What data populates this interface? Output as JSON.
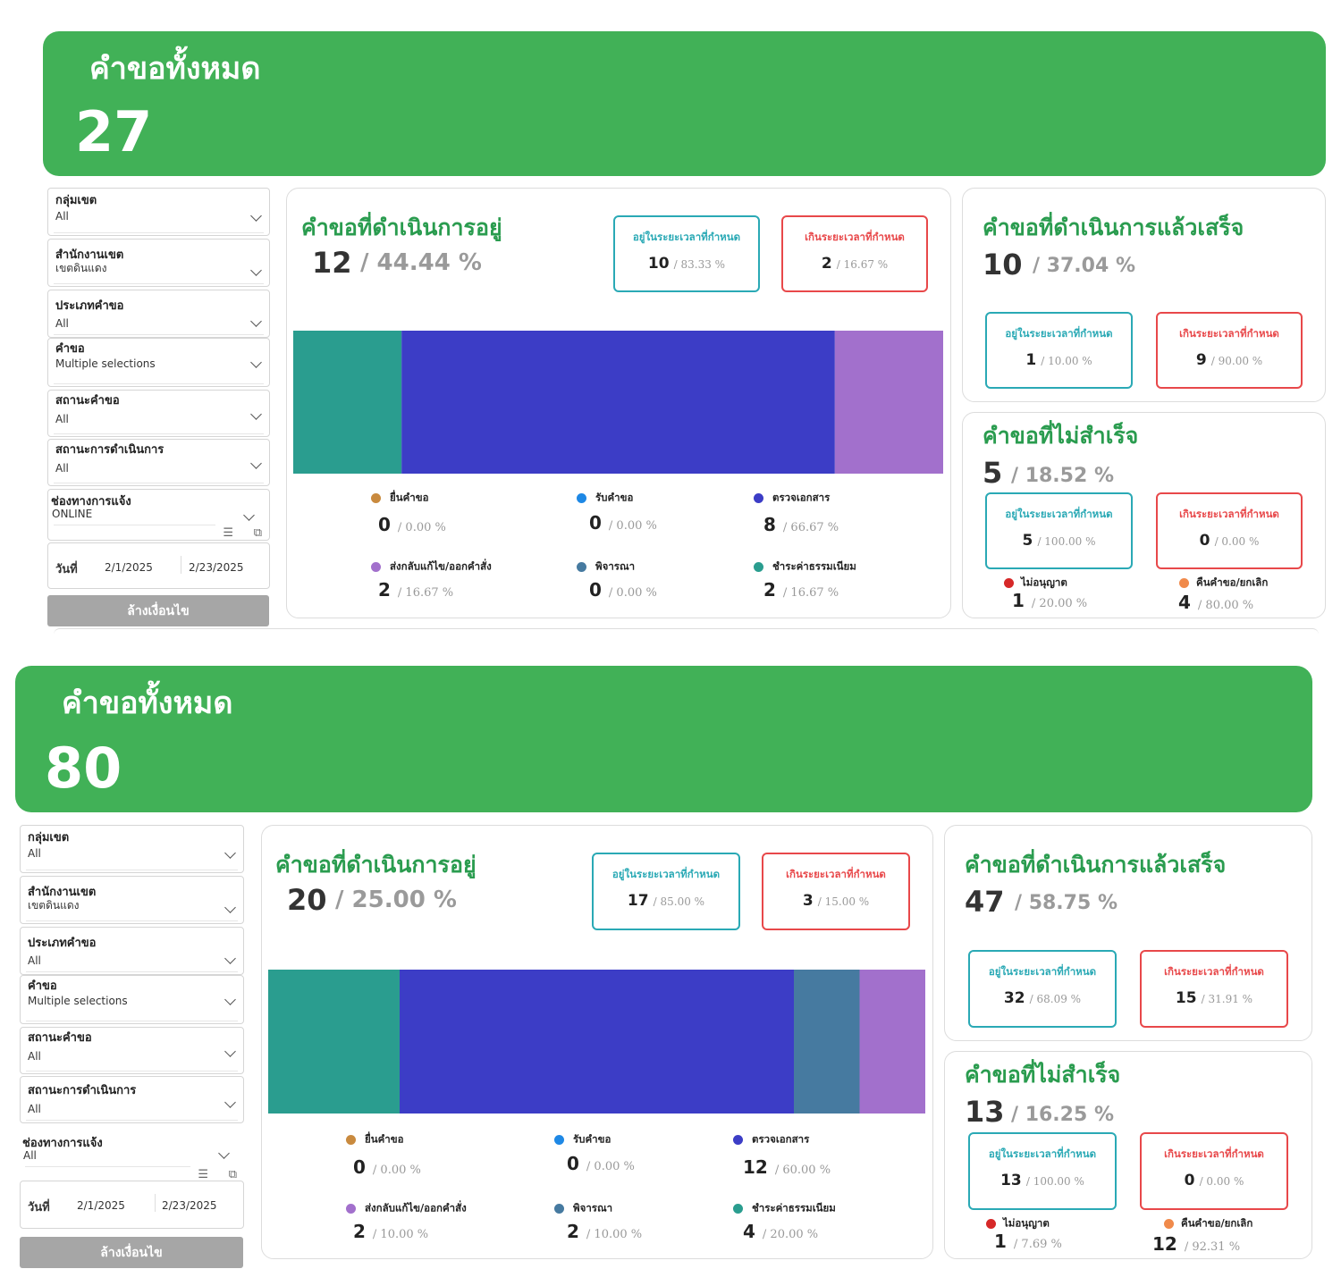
{
  "colors": {
    "banner": "#41b157",
    "title_green": "#2a9c4f",
    "ok": "#2aa9b5",
    "bad": "#e8484a",
    "muted": "#9a9a9a"
  },
  "labels": {
    "total_title": "คำขอทั้งหมด",
    "in_progress": "คำขอที่ดำเนินการอยู่",
    "done": "คำขอที่ดำเนินการแล้วเสร็จ",
    "failed": "คำขอที่ไม่สำเร็จ",
    "within": "อยู่ในระยะเวลาที่กำหนด",
    "over": "เกินระยะเวลาที่กำหนด",
    "not_allowed": "ไม่อนุญาต",
    "returned": "คืนคำขอ/ยกเลิก",
    "date_label": "วันที่",
    "clear_button": "ล้างเงื่อนไข",
    "filter_icon": "filter-icon",
    "expand_icon": "expand-icon"
  },
  "stage_names": [
    "ยื่นคำขอ",
    "รับคำขอ",
    "ตรวจเอกสาร",
    "ส่งกลับแก้ไข/ออกคำสั่ง",
    "พิจารณา",
    "ชำระค่าธรรมเนียม"
  ],
  "stage_colors": [
    "#c98a3e",
    "#1e88e5",
    "#3c3dc6",
    "#a270cc",
    "#467aa0",
    "#2a9d8f"
  ],
  "dashboards": [
    {
      "total": "27",
      "filters": [
        {
          "label": "กลุ่มเขต",
          "value": "All"
        },
        {
          "label": "สำนักงานเขต",
          "value": "เขตดินแดง"
        },
        {
          "label": "ประเภทคำขอ",
          "value": "All"
        },
        {
          "label": "คำขอ",
          "value": "Multiple selections"
        },
        {
          "label": "สถานะคำขอ",
          "value": "All"
        },
        {
          "label": "สถานะการดำเนินการ",
          "value": "All"
        },
        {
          "label": "ช่องทางการแจ้ง",
          "value": "ONLINE"
        }
      ],
      "date_from": "2/1/2025",
      "date_to": "2/23/2025",
      "in_progress": {
        "count": "12",
        "pct": "/ 44.44 %",
        "within": {
          "count": "10",
          "pct": "/ 83.33 %"
        },
        "over": {
          "count": "2",
          "pct": "/ 16.67 %"
        },
        "stages": [
          {
            "count": "0",
            "pct": "/ 0.00 %"
          },
          {
            "count": "0",
            "pct": "/ 0.00 %"
          },
          {
            "count": "8",
            "pct": "/ 66.67 %"
          },
          {
            "count": "2",
            "pct": "/ 16.67 %"
          },
          {
            "count": "0",
            "pct": "/ 0.00 %"
          },
          {
            "count": "2",
            "pct": "/ 16.67 %"
          }
        ]
      },
      "done": {
        "count": "10",
        "pct": "/ 37.04 %",
        "within": {
          "count": "1",
          "pct": "/ 10.00 %"
        },
        "over": {
          "count": "9",
          "pct": "/ 90.00 %"
        }
      },
      "failed": {
        "count": "5",
        "pct": "/ 18.52 %",
        "within": {
          "count": "5",
          "pct": "/ 100.00 %"
        },
        "over": {
          "count": "0",
          "pct": "/ 0.00 %"
        },
        "not_allowed": {
          "count": "1",
          "pct": "/ 20.00 %"
        },
        "returned": {
          "count": "4",
          "pct": "/ 80.00 %"
        }
      }
    },
    {
      "total": "80",
      "filters": [
        {
          "label": "กลุ่มเขต",
          "value": "All"
        },
        {
          "label": "สำนักงานเขต",
          "value": "เขตดินแดง"
        },
        {
          "label": "ประเภทคำขอ",
          "value": "All"
        },
        {
          "label": "คำขอ",
          "value": "Multiple selections"
        },
        {
          "label": "สถานะคำขอ",
          "value": "All"
        },
        {
          "label": "สถานะการดำเนินการ",
          "value": "All"
        },
        {
          "label": "ช่องทางการแจ้ง",
          "value": "All"
        }
      ],
      "date_from": "2/1/2025",
      "date_to": "2/23/2025",
      "in_progress": {
        "count": "20",
        "pct": "/ 25.00 %",
        "within": {
          "count": "17",
          "pct": "/ 85.00 %"
        },
        "over": {
          "count": "3",
          "pct": "/ 15.00 %"
        },
        "stages": [
          {
            "count": "0",
            "pct": "/ 0.00 %"
          },
          {
            "count": "0",
            "pct": "/ 0.00 %"
          },
          {
            "count": "12",
            "pct": "/ 60.00 %"
          },
          {
            "count": "2",
            "pct": "/ 10.00 %"
          },
          {
            "count": "2",
            "pct": "/ 10.00 %"
          },
          {
            "count": "4",
            "pct": "/ 20.00 %"
          }
        ]
      },
      "done": {
        "count": "47",
        "pct": "/ 58.75 %",
        "within": {
          "count": "32",
          "pct": "/ 68.09 %"
        },
        "over": {
          "count": "15",
          "pct": "/ 31.91 %"
        }
      },
      "failed": {
        "count": "13",
        "pct": "/ 16.25 %",
        "within": {
          "count": "13",
          "pct": "/ 100.00 %"
        },
        "over": {
          "count": "0",
          "pct": "/ 0.00 %"
        },
        "not_allowed": {
          "count": "1",
          "pct": "/ 7.69 %"
        },
        "returned": {
          "count": "12",
          "pct": "/ 92.31 %"
        }
      }
    }
  ],
  "chart_data": [
    {
      "type": "bar",
      "orientation": "horizontal-stacked-100",
      "categories": [
        "ชำระค่าธรรมเนียม",
        "ตรวจเอกสาร",
        "ส่งกลับแก้ไข/ออกคำสั่ง"
      ],
      "values": [
        2,
        8,
        2
      ]
    },
    {
      "type": "bar",
      "orientation": "horizontal-stacked-100",
      "categories": [
        "ชำระค่าธรรมเนียม",
        "ตรวจเอกสาร",
        "พิจารณา",
        "ส่งกลับแก้ไข/ออกคำสั่ง"
      ],
      "values": [
        4,
        12,
        2,
        2
      ]
    }
  ]
}
